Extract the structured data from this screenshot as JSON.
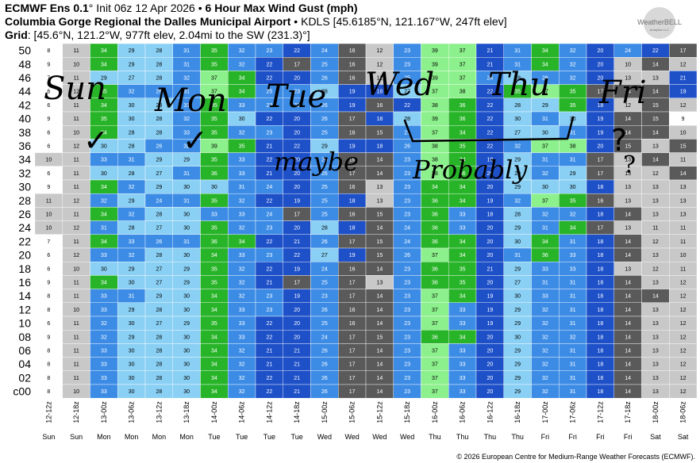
{
  "header": {
    "line1": {
      "model": "ECMWF Ens 0.1",
      "deg": "°",
      "init": " Init 06z 12 Apr 2026",
      "sep": " • ",
      "product": "6 Hour Max Wind Gust (mph)"
    },
    "line2": {
      "station": "Columbia Gorge Regional the Dalles Municipal Airport",
      "sep": " • ",
      "info": "KDLS [45.6185°N, 121.167°W, 247ft elev]"
    },
    "line3": {
      "label": "Grid",
      "value": ": [45.6°N, 121.2°W, 977ft elev, 2.04mi to the SW (231.3)°]"
    }
  },
  "logo": {
    "text": "WeatherBELL",
    "sub": "Analytics LLC"
  },
  "footer": "© 2026 European Centre for Medium-Range Weather Forecasts (ECMWF).",
  "colors": {
    "calm": "#ffffff",
    "light": "#c8c8c8",
    "lightblue": "#8ad0f4",
    "blue": "#3c8ce6",
    "darkblue": "#1e50c8",
    "gray": "#5a5a5a",
    "lime": "#8cf08c",
    "green": "#28b428"
  },
  "annotations": {
    "days": [
      "Sun",
      "Mon",
      "Tue",
      "Wed",
      "Thu",
      "Fri"
    ],
    "marks": [
      "✓",
      "✓",
      "✓",
      "?"
    ],
    "words": [
      "maybe",
      "Probably",
      "?"
    ]
  },
  "chart_data": {
    "type": "heatmap",
    "title": "6 Hour Max Wind Gust (mph)",
    "x_labels": [
      "12-12z",
      "12-18z",
      "13-00z",
      "13-06z",
      "13-12z",
      "13-18z",
      "14-00z",
      "14-06z",
      "14-12z",
      "14-18z",
      "15-00z",
      "15-06z",
      "15-12z",
      "15-18z",
      "16-00z",
      "16-06z",
      "16-12z",
      "16-18z",
      "17-00z",
      "17-06z",
      "17-12z",
      "17-18z",
      "18-00z",
      "18-06z"
    ],
    "day_labels": [
      "Sun",
      "Sun",
      "Mon",
      "Mon",
      "Mon",
      "Mon",
      "Tue",
      "Tue",
      "Tue",
      "Tue",
      "Wed",
      "Wed",
      "Wed",
      "Wed",
      "Thu",
      "Thu",
      "Thu",
      "Thu",
      "Fri",
      "Fri",
      "Fri",
      "Fri",
      "Sat",
      "Sat"
    ],
    "y_labels": [
      "50",
      "48",
      "46",
      "44",
      "42",
      "40",
      "38",
      "36",
      "34",
      "32",
      "30",
      "28",
      "26",
      "24",
      "22",
      "20",
      "18",
      "16",
      "14",
      "12",
      "10",
      "08",
      "06",
      "04",
      "02",
      "c00"
    ],
    "rows_top_to_bottom": [
      [
        8,
        11,
        34,
        29,
        28,
        31,
        35,
        32,
        23,
        22,
        24,
        16,
        12,
        23,
        39,
        37,
        21,
        31,
        34,
        32,
        20,
        24,
        22,
        17
      ],
      [
        9,
        10,
        34,
        29,
        28,
        31,
        35,
        32,
        22,
        17,
        25,
        16,
        12,
        23,
        39,
        37,
        21,
        31,
        34,
        32,
        20,
        10,
        14,
        12
      ],
      [
        7,
        11,
        29,
        27,
        28,
        32,
        37,
        34,
        22,
        20,
        26,
        16,
        12,
        25,
        39,
        37,
        24,
        28,
        26,
        32,
        20,
        13,
        13,
        21
      ],
      [
        6,
        12,
        35,
        32,
        26,
        31,
        37,
        34,
        25,
        23,
        28,
        19,
        18,
        27,
        37,
        38,
        22,
        35,
        37,
        35,
        17,
        14,
        14,
        19
      ],
      [
        6,
        11,
        34,
        30,
        28,
        31,
        35,
        33,
        23,
        23,
        26,
        19,
        16,
        22,
        38,
        36,
        22,
        28,
        29,
        35,
        18,
        12,
        15,
        12
      ],
      [
        9,
        11,
        35,
        30,
        28,
        32,
        35,
        30,
        22,
        20,
        26,
        17,
        18,
        28,
        39,
        36,
        22,
        30,
        31,
        30,
        19,
        14,
        15,
        9
      ],
      [
        6,
        10,
        34,
        28,
        28,
        33,
        35,
        32,
        23,
        20,
        25,
        16,
        15,
        23,
        37,
        34,
        22,
        27,
        30,
        31,
        19,
        14,
        14,
        10
      ],
      [
        6,
        12,
        30,
        28,
        26,
        32,
        39,
        35,
        21,
        22,
        29,
        19,
        18,
        26,
        38,
        35,
        22,
        32,
        37,
        38,
        20,
        15,
        13,
        15
      ],
      [
        10,
        11,
        33,
        31,
        29,
        29,
        35,
        33,
        22,
        20,
        26,
        16,
        14,
        23,
        38,
        34,
        19,
        29,
        31,
        31,
        17,
        13,
        14,
        11
      ],
      [
        6,
        11,
        30,
        28,
        27,
        31,
        36,
        33,
        21,
        20,
        26,
        17,
        14,
        23,
        38,
        36,
        20,
        29,
        32,
        29,
        17,
        13,
        12,
        14
      ],
      [
        9,
        11,
        34,
        32,
        29,
        30,
        30,
        31,
        24,
        20,
        25,
        16,
        13,
        23,
        34,
        34,
        20,
        29,
        30,
        30,
        18,
        13,
        13,
        13
      ],
      [
        11,
        12,
        32,
        29,
        24,
        31,
        35,
        32,
        22,
        19,
        25,
        18,
        13,
        23,
        36,
        34,
        19,
        32,
        37,
        35,
        16,
        13,
        13,
        13
      ],
      [
        10,
        11,
        34,
        32,
        28,
        30,
        33,
        33,
        24,
        17,
        25,
        16,
        15,
        23,
        36,
        33,
        18,
        28,
        32,
        32,
        18,
        14,
        13,
        13
      ],
      [
        10,
        12,
        31,
        28,
        27,
        30,
        35,
        32,
        23,
        20,
        28,
        18,
        14,
        24,
        36,
        33,
        20,
        29,
        31,
        34,
        17,
        13,
        11,
        11
      ],
      [
        7,
        11,
        34,
        33,
        26,
        31,
        36,
        34,
        22,
        21,
        26,
        17,
        15,
        24,
        36,
        34,
        20,
        30,
        34,
        31,
        18,
        14,
        12,
        11
      ],
      [
        6,
        12,
        33,
        32,
        28,
        30,
        34,
        33,
        23,
        22,
        27,
        19,
        15,
        26,
        37,
        34,
        20,
        31,
        36,
        33,
        18,
        14,
        13,
        10
      ],
      [
        6,
        10,
        30,
        29,
        27,
        29,
        35,
        32,
        22,
        19,
        24,
        16,
        14,
        23,
        36,
        35,
        21,
        29,
        33,
        33,
        18,
        13,
        12,
        11
      ],
      [
        9,
        11,
        34,
        30,
        27,
        29,
        35,
        32,
        21,
        17,
        25,
        17,
        13,
        23,
        36,
        35,
        20,
        27,
        31,
        31,
        18,
        14,
        13,
        12
      ],
      [
        8,
        11,
        33,
        31,
        29,
        30,
        34,
        32,
        23,
        19,
        23,
        17,
        14,
        23,
        37,
        34,
        19,
        30,
        33,
        31,
        18,
        14,
        14,
        12
      ],
      [
        8,
        10,
        33,
        29,
        28,
        30,
        34,
        33,
        23,
        20,
        26,
        16,
        14,
        23,
        37,
        33,
        19,
        29,
        32,
        31,
        18,
        14,
        13,
        12
      ],
      [
        6,
        11,
        32,
        30,
        27,
        29,
        35,
        33,
        22,
        20,
        25,
        16,
        14,
        23,
        37,
        33,
        19,
        29,
        32,
        31,
        18,
        14,
        13,
        12
      ],
      [
        9,
        11,
        32,
        29,
        28,
        30,
        34,
        33,
        22,
        20,
        24,
        17,
        15,
        23,
        36,
        34,
        20,
        30,
        32,
        32,
        18,
        14,
        13,
        12
      ],
      [
        8,
        11,
        33,
        30,
        28,
        30,
        34,
        32,
        21,
        21,
        26,
        17,
        14,
        23,
        37,
        33,
        20,
        29,
        32,
        31,
        18,
        14,
        13,
        12
      ],
      [
        8,
        11,
        33,
        30,
        28,
        30,
        34,
        32,
        21,
        21,
        26,
        17,
        14,
        23,
        37,
        33,
        20,
        29,
        32,
        31,
        18,
        14,
        13,
        12
      ],
      [
        8,
        11,
        33,
        30,
        28,
        30,
        34,
        32,
        22,
        21,
        26,
        17,
        14,
        23,
        37,
        33,
        20,
        29,
        32,
        31,
        18,
        14,
        13,
        12
      ],
      [
        8,
        10,
        33,
        30,
        28,
        30,
        34,
        32,
        22,
        21,
        26,
        17,
        14,
        23,
        37,
        33,
        20,
        29,
        32,
        31,
        18,
        14,
        13,
        12
      ]
    ],
    "color_bins": [
      {
        "max": 9,
        "color": "calm"
      },
      {
        "max": 13,
        "color": "light"
      },
      {
        "max": 17,
        "color": "gray"
      },
      {
        "max": 22,
        "color": "darkblue"
      },
      {
        "max": 26,
        "color": "blue"
      },
      {
        "max": 30,
        "color": "lightblue"
      },
      {
        "max": 33,
        "color": "blue"
      },
      {
        "max": 36,
        "color": "green"
      },
      {
        "max": 99,
        "color": "lime"
      }
    ]
  }
}
